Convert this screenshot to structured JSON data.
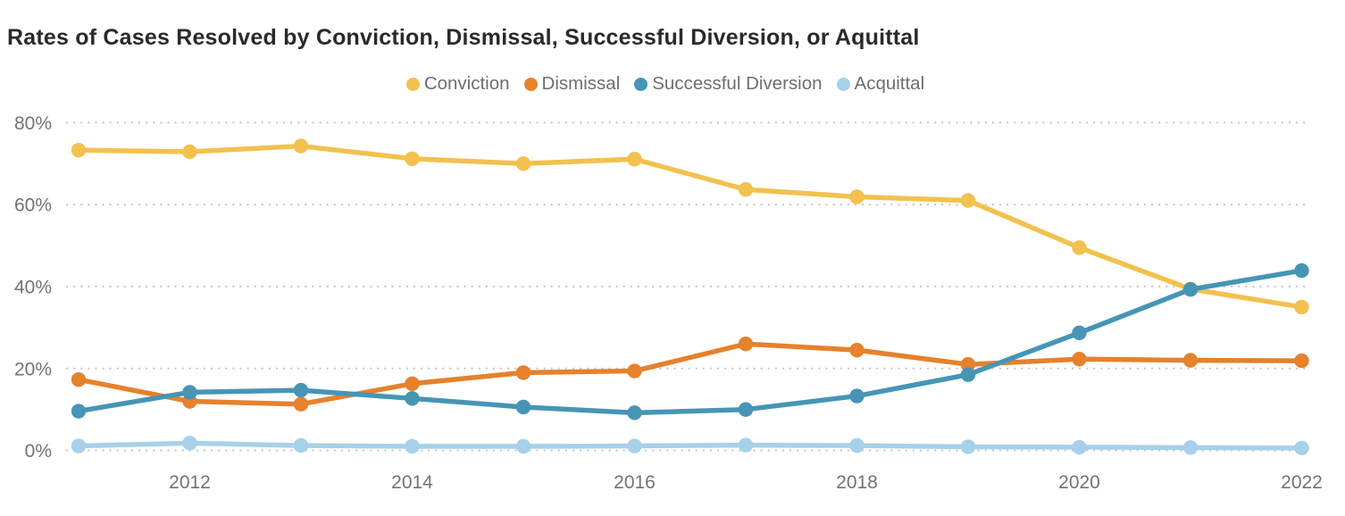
{
  "title": "Rates of Cases Resolved by Conviction, Dismissal, Successful Diversion, or Aquittal",
  "chart_data": {
    "type": "line",
    "title": "Rates of Cases Resolved by Conviction, Dismissal, Successful Diversion, or Aquittal",
    "x": [
      2011,
      2012,
      2013,
      2014,
      2015,
      2016,
      2017,
      2018,
      2019,
      2020,
      2021,
      2022
    ],
    "x_ticks": [
      {
        "value": 2012,
        "label": "2012"
      },
      {
        "value": 2014,
        "label": "2014"
      },
      {
        "value": 2016,
        "label": "2016"
      },
      {
        "value": 2018,
        "label": "2018"
      },
      {
        "value": 2020,
        "label": "2020"
      },
      {
        "value": 2022,
        "label": "2022"
      }
    ],
    "y_ticks": [
      {
        "value": 0,
        "label": "0%"
      },
      {
        "value": 20,
        "label": "20%"
      },
      {
        "value": 40,
        "label": "40%"
      },
      {
        "value": 60,
        "label": "60%"
      },
      {
        "value": 80,
        "label": "80%"
      }
    ],
    "ylim": [
      0,
      85
    ],
    "grid": "horizontal-dotted",
    "legend_position": "top-center",
    "series": [
      {
        "name": "Conviction",
        "color": "#F2C14E",
        "values": [
          73.3,
          72.9,
          74.3,
          71.2,
          70.0,
          71.1,
          63.7,
          61.9,
          61.0,
          49.5,
          39.4,
          35.0
        ]
      },
      {
        "name": "Dismissal",
        "color": "#E6812C",
        "values": [
          17.3,
          12.0,
          11.3,
          16.3,
          19.0,
          19.4,
          26.0,
          24.5,
          21.0,
          22.3,
          22.0,
          21.9
        ]
      },
      {
        "name": "Successful Diversion",
        "color": "#4695B5",
        "values": [
          9.6,
          14.2,
          14.7,
          12.7,
          10.6,
          9.2,
          10.0,
          13.3,
          18.5,
          28.7,
          39.3,
          43.9
        ]
      },
      {
        "name": "Acquittal",
        "color": "#A7D0EA",
        "values": [
          1.1,
          1.8,
          1.2,
          1.0,
          1.0,
          1.1,
          1.3,
          1.2,
          0.9,
          0.8,
          0.7,
          0.6
        ]
      }
    ]
  },
  "colors": {
    "background": "#ffffff",
    "title_text": "#2a2a2a",
    "legend_text": "#6e6e6e",
    "tick_text": "#737373",
    "gridline": "#cbcbcb"
  }
}
